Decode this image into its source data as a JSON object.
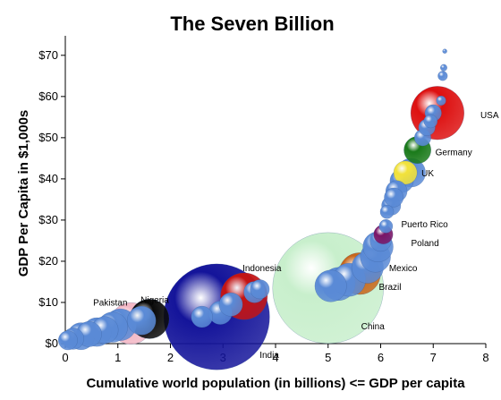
{
  "chart_data": {
    "type": "scatter",
    "title": "The Seven Billion",
    "xlabel": "Cumulative world population (in billions) <= GDP per capita",
    "ylabel": "GDP Per Capita in $1,000s",
    "xlim": [
      0,
      8
    ],
    "ylim": [
      0,
      73
    ],
    "x_ticks": [
      "0",
      "1",
      "2",
      "3",
      "4",
      "5",
      "6",
      "7",
      "8"
    ],
    "y_ticks": [
      "$0",
      "$10",
      "$20",
      "$30",
      "$40",
      "$50",
      "$60",
      "$70"
    ],
    "grid": false,
    "default_bubble_color": "#5a8ad6",
    "points": [
      {
        "x": 0.05,
        "y": 0.8,
        "pop": 0.04
      },
      {
        "x": 0.15,
        "y": 1.2,
        "pop": 0.05
      },
      {
        "x": 0.3,
        "y": 1.8,
        "pop": 0.08
      },
      {
        "x": 0.45,
        "y": 2.3,
        "pop": 0.07
      },
      {
        "x": 0.6,
        "y": 2.8,
        "pop": 0.09
      },
      {
        "x": 0.75,
        "y": 3.3,
        "pop": 0.08
      },
      {
        "x": 0.9,
        "y": 4.0,
        "pop": 0.1
      },
      {
        "x": 1.05,
        "y": 4.6,
        "pop": 0.11
      },
      {
        "x": 1.25,
        "y": 4.9,
        "pop": 0.19,
        "color": "#f3b6c4",
        "label": "Pakistan",
        "label_dx": -4,
        "label_dy": -20,
        "label_anchor": "end"
      },
      {
        "x": 1.45,
        "y": 5.6,
        "pop": 0.09
      },
      {
        "x": 1.6,
        "y": 6.0,
        "pop": 0.17,
        "color": "#0a0a0a",
        "label": "Nigeria",
        "label_dx": 6,
        "label_dy": -18,
        "label_anchor": "middle"
      },
      {
        "x": 2.6,
        "y": 6.5,
        "pop": 0.05
      },
      {
        "x": 2.88,
        "y": 6.5,
        "pop": 1.22,
        "color": "#14149a",
        "label": "India",
        "label_dx": 48,
        "label_dy": 46,
        "label_anchor": "start"
      },
      {
        "x": 2.95,
        "y": 7.5,
        "pop": 0.06
      },
      {
        "x": 3.15,
        "y": 9.5,
        "pop": 0.06
      },
      {
        "x": 3.4,
        "y": 11.5,
        "pop": 0.24,
        "color": "#c41414",
        "label": "Indonesia",
        "label_dx": 20,
        "label_dy": -28,
        "label_anchor": "middle"
      },
      {
        "x": 3.6,
        "y": 12.5,
        "pop": 0.05
      },
      {
        "x": 3.7,
        "y": 13.2,
        "pop": 0.04
      },
      {
        "x": 5.0,
        "y": 13.5,
        "pop": 1.34,
        "color": "#c8efcc",
        "label": "China",
        "label_dx": 50,
        "label_dy": 46,
        "label_anchor": "middle"
      },
      {
        "x": 5.05,
        "y": 14.0,
        "pop": 0.11
      },
      {
        "x": 5.2,
        "y": 14.5,
        "pop": 0.12
      },
      {
        "x": 5.4,
        "y": 15.5,
        "pop": 0.12
      },
      {
        "x": 5.6,
        "y": 17.0,
        "pop": 0.19,
        "color": "#c8661a",
        "label": "Brazil",
        "label_dx": 34,
        "label_dy": 18,
        "label_anchor": "middle"
      },
      {
        "x": 5.75,
        "y": 18.5,
        "pop": 0.11,
        "label": "Mexico",
        "label_dx": 24,
        "label_dy": 4,
        "label_anchor": "start"
      },
      {
        "x": 5.9,
        "y": 21.0,
        "pop": 0.1
      },
      {
        "x": 5.95,
        "y": 23.5,
        "pop": 0.1
      },
      {
        "x": 6.0,
        "y": 25.0,
        "pop": 0.05,
        "label": "Poland",
        "label_dx": 34,
        "label_dy": 6,
        "label_anchor": "start"
      },
      {
        "x": 6.05,
        "y": 26.5,
        "pop": 0.04,
        "color": "#7a1466",
        "label": "Puerto Rico",
        "label_dx": 20,
        "label_dy": -8,
        "label_anchor": "start"
      },
      {
        "x": 6.1,
        "y": 28.5,
        "pop": 0.02
      },
      {
        "x": 6.12,
        "y": 32.0,
        "pop": 0.02
      },
      {
        "x": 6.2,
        "y": 33.5,
        "pop": 0.04
      },
      {
        "x": 6.25,
        "y": 35.5,
        "pop": 0.04
      },
      {
        "x": 6.3,
        "y": 37.0,
        "pop": 0.05
      },
      {
        "x": 6.4,
        "y": 39.5,
        "pop": 0.06
      },
      {
        "x": 6.47,
        "y": 41.5,
        "pop": 0.06,
        "color": "#f2e23a",
        "label": "UK",
        "label_dx": 18,
        "label_dy": 4,
        "label_anchor": "start"
      },
      {
        "x": 6.58,
        "y": 41.5,
        "pop": 0.09
      },
      {
        "x": 6.7,
        "y": 47.0,
        "pop": 0.08,
        "color": "#1a7a1a",
        "label": "Germany",
        "label_dx": 20,
        "label_dy": 6,
        "label_anchor": "start"
      },
      {
        "x": 6.8,
        "y": 50.0,
        "pop": 0.03
      },
      {
        "x": 6.88,
        "y": 52.5,
        "pop": 0.03
      },
      {
        "x": 6.95,
        "y": 54.0,
        "pop": 0.02
      },
      {
        "x": 7.0,
        "y": 56.0,
        "pop": 0.03
      },
      {
        "x": 7.08,
        "y": 56.0,
        "pop": 0.31,
        "color": "#dd1010",
        "label": "USA",
        "label_dx": 48,
        "label_dy": 6,
        "label_anchor": "start"
      },
      {
        "x": 7.15,
        "y": 59.0,
        "pop": 0.01
      },
      {
        "x": 7.18,
        "y": 65.0,
        "pop": 0.01
      },
      {
        "x": 7.2,
        "y": 67.0,
        "pop": 0.005
      },
      {
        "x": 7.22,
        "y": 71.0,
        "pop": 0.002
      }
    ]
  }
}
